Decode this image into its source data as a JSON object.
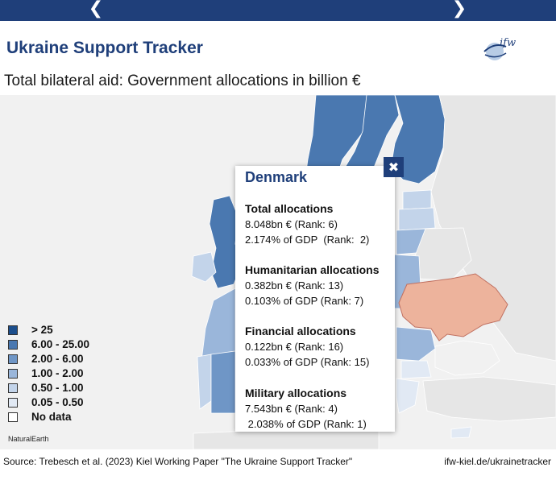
{
  "header": {
    "prev_icon": "chevron-left-icon",
    "prev_glyph": "❮",
    "next_icon": "chevron-right-icon",
    "next_glyph": "❯",
    "title": "Ukraine Support Tracker",
    "logo_text": "ifw"
  },
  "subtitle": "Total bilateral aid: Government allocations in billion €",
  "colors": {
    "brand": "#1f3f7a",
    "gt25": "#1c4e8c",
    "6_25": "#4a78b0",
    "2_6": "#6f96c6",
    "1_2": "#9ab6da",
    "05_1": "#c3d4ea",
    "005_05": "#e1e9f4",
    "no_data": "#ffffff",
    "ukraine": "#edb39c",
    "land": "#e6e6e6",
    "sea": "#f1f1f1"
  },
  "legend": {
    "items": [
      {
        "label": "> 25",
        "color": "#1c4e8c"
      },
      {
        "label": "6.00 - 25.00",
        "color": "#4a78b0"
      },
      {
        "label": "2.00 - 6.00",
        "color": "#6f96c6"
      },
      {
        "label": "1.00 - 2.00",
        "color": "#9ab6da"
      },
      {
        "label": "0.50 - 1.00",
        "color": "#c3d4ea"
      },
      {
        "label": "0.05 - 0.50",
        "color": "#e1e9f4"
      },
      {
        "label": "No data",
        "color": "#ffffff"
      }
    ]
  },
  "attribution": "NaturalEarth",
  "popup": {
    "title": "Denmark",
    "close_icon": "close-icon",
    "close_glyph": "✖",
    "sections": [
      {
        "heading": "Total allocations",
        "line1": "8.048bn € (Rank: 6)",
        "line2": "2.174% of GDP  (Rank:  2)"
      },
      {
        "heading": "Humanitarian allocations",
        "line1": "0.382bn € (Rank: 13)",
        "line2": "0.103% of GDP (Rank: 7)"
      },
      {
        "heading": "Financial allocations",
        "line1": "0.122bn € (Rank: 16)",
        "line2": "0.033% of GDP (Rank: 15)"
      },
      {
        "heading": "Military allocations",
        "line1": "7.543bn € (Rank: 4)",
        "line2": " 2.038% of GDP (Rank: 1)"
      }
    ]
  },
  "footer": {
    "source": "Source: Trebesch et al. (2023) Kiel Working Paper \"The Ukraine Support Tracker\"",
    "link": "ifw-kiel.de/ukrainetracker"
  }
}
